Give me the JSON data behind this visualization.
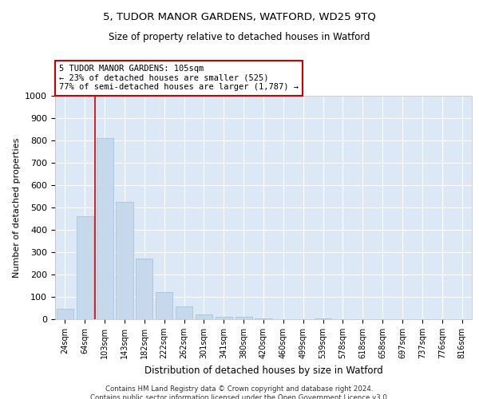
{
  "title1": "5, TUDOR MANOR GARDENS, WATFORD, WD25 9TQ",
  "title2": "Size of property relative to detached houses in Watford",
  "xlabel": "Distribution of detached houses by size in Watford",
  "ylabel": "Number of detached properties",
  "categories": [
    "24sqm",
    "64sqm",
    "103sqm",
    "143sqm",
    "182sqm",
    "222sqm",
    "262sqm",
    "301sqm",
    "341sqm",
    "380sqm",
    "420sqm",
    "460sqm",
    "499sqm",
    "539sqm",
    "578sqm",
    "618sqm",
    "658sqm",
    "697sqm",
    "737sqm",
    "776sqm",
    "816sqm"
  ],
  "values": [
    45,
    460,
    810,
    525,
    270,
    120,
    57,
    20,
    10,
    10,
    5,
    0,
    0,
    5,
    0,
    0,
    0,
    0,
    0,
    0,
    0
  ],
  "bar_color": "#c5d8ec",
  "bar_edge_color": "#a8c4dc",
  "vline_x": 1.5,
  "vline_color": "#cc0000",
  "annotation_text": "5 TUDOR MANOR GARDENS: 105sqm\n← 23% of detached houses are smaller (525)\n77% of semi-detached houses are larger (1,787) →",
  "annotation_box_color": "#ffffff",
  "annotation_box_edge": "#cc0000",
  "ylim": [
    0,
    1000
  ],
  "yticks": [
    0,
    100,
    200,
    300,
    400,
    500,
    600,
    700,
    800,
    900,
    1000
  ],
  "plot_bg_color": "#dce8f5",
  "footer1": "Contains HM Land Registry data © Crown copyright and database right 2024.",
  "footer2": "Contains public sector information licensed under the Open Government Licence v3.0."
}
